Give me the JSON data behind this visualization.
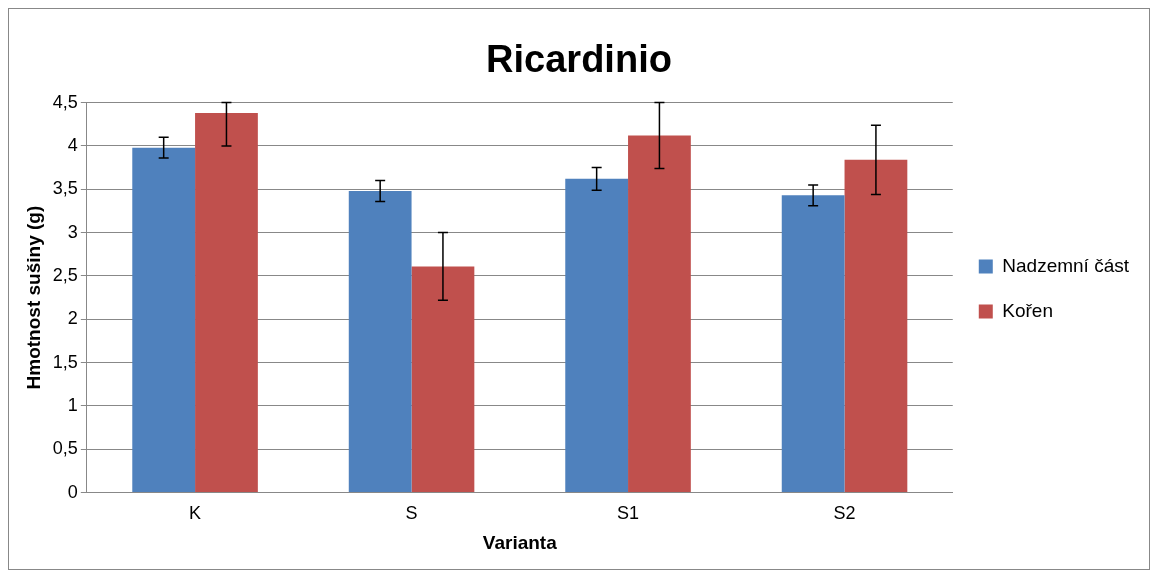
{
  "chart_data": {
    "type": "bar",
    "title": "Ricardinio",
    "xlabel": "Varianta",
    "ylabel": "Hmotnost sušiny (g)",
    "categories": [
      "K",
      "S",
      "S1",
      "S2"
    ],
    "series": [
      {
        "name": "Nadzemní část",
        "color": "#4f81bd",
        "values": [
          3.98,
          3.48,
          3.62,
          3.43
        ],
        "errors": [
          0.12,
          0.12,
          0.13,
          0.12
        ]
      },
      {
        "name": "Kořen",
        "color": "#c0504d",
        "values": [
          4.38,
          2.61,
          4.12,
          3.84
        ],
        "errors": [
          [
            4.0,
            4.5
          ],
          0.39,
          0.38,
          0.4
        ]
      }
    ],
    "ylim": [
      0,
      4.5
    ],
    "yticks": [
      {
        "value": 0,
        "label": "0"
      },
      {
        "value": 0.5,
        "label": "0,5"
      },
      {
        "value": 1,
        "label": "1"
      },
      {
        "value": 1.5,
        "label": "1,5"
      },
      {
        "value": 2,
        "label": "2"
      },
      {
        "value": 2.5,
        "label": "2,5"
      },
      {
        "value": 3,
        "label": "3"
      },
      {
        "value": 3.5,
        "label": "3,5"
      },
      {
        "value": 4,
        "label": "4"
      },
      {
        "value": 4.5,
        "label": "4,5"
      }
    ],
    "grid": "y",
    "legend": "right"
  }
}
